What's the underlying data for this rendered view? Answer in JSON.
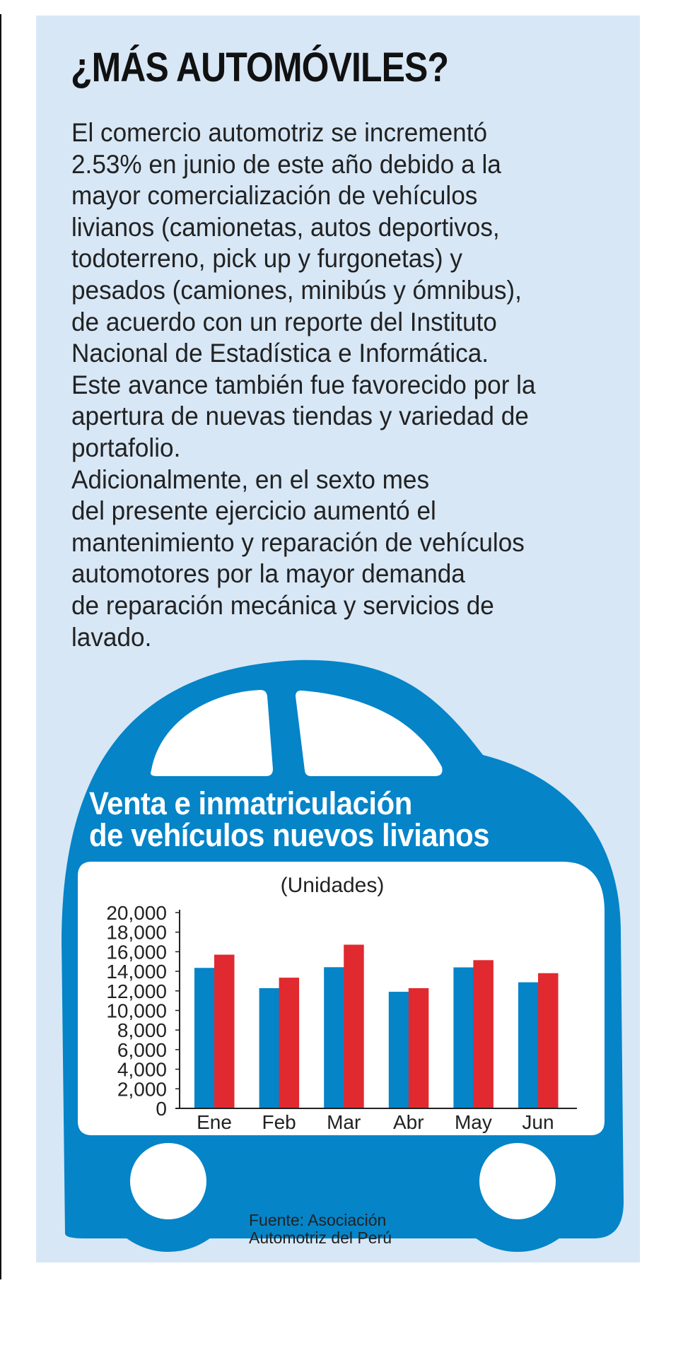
{
  "header": {
    "title": "¿MÁS AUTOMÓVILES?"
  },
  "body_lines": [
    "El comercio automotriz se incrementó",
    "2.53% en junio de este año debido a la",
    "mayor comercialización de vehículos",
    "livianos (camionetas, autos deportivos,",
    "todoterreno, pick up y furgonetas) y",
    "pesados (camiones, minibús y ómnibus),",
    "de acuerdo con un reporte del Instituto",
    "Nacional de Estadística e Informática.",
    "Este avance también fue favorecido por la",
    "apertura de nuevas tiendas y variedad de",
    "portafolio.",
    "Adicionalmente, en el sexto mes",
    "del presente ejercicio aumentó el",
    "mantenimiento y reparación de vehículos",
    "automotores por la mayor demanda",
    "de reparación mecánica y servicios de",
    "lavado."
  ],
  "colors": {
    "panel": "#d7e7f6",
    "car": "#0584c8",
    "series_blue": "#0584c8",
    "series_red": "#e02a30"
  },
  "chart_data": {
    "type": "bar",
    "title_line1": "Venta e inmatriculación",
    "title_line2": "de vehículos nuevos livianos",
    "subtitle": "(Unidades)",
    "categories": [
      "Ene",
      "Feb",
      "Mar",
      "Abr",
      "May",
      "Jun"
    ],
    "series": [
      {
        "color": "#0584c8",
        "values": [
          14350,
          12280,
          14420,
          11910,
          14400,
          12880
        ]
      },
      {
        "color": "#e02a30",
        "values": [
          15700,
          13350,
          16720,
          12280,
          15140,
          13810
        ]
      }
    ],
    "yticks": [
      "0",
      "2,000",
      "4,000",
      "6,000",
      "8,000",
      "10,000",
      "12,000",
      "14,000",
      "16,000",
      "18,000",
      "20,000"
    ],
    "ylim": [
      0,
      20000
    ],
    "grid": false,
    "legend": "none"
  },
  "source": {
    "line1": "Fuente: Asociación",
    "line2": "Automotriz del Perú"
  }
}
